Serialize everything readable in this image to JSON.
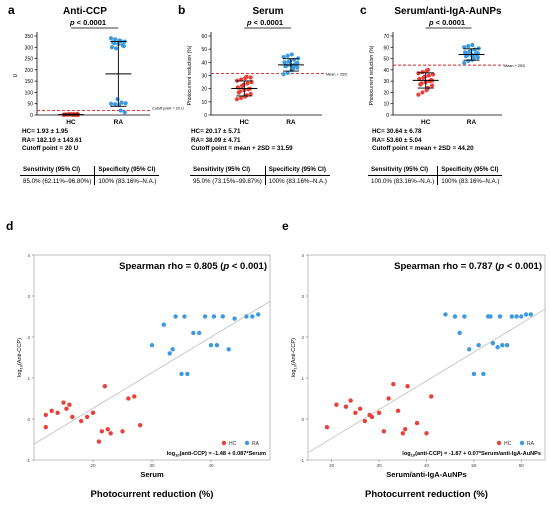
{
  "colors": {
    "hc": "#e8413a",
    "ra": "#3d9ae0",
    "cutoff": "#e01f1f",
    "fit": "#c8c8c8",
    "bar": "#000000"
  },
  "panels_top": [
    {
      "letter": "a",
      "title": "Anti-CCP",
      "p_label": "p < 0.0001",
      "ylabel": "U",
      "cutoff_label": "Cutoff point = 20 U",
      "stats": [
        "HC= 1.93 ± 1.95",
        "RA= 182.10 ± 143.61",
        "Cutoff point = 20 U"
      ],
      "ci": {
        "h1": "Sensitivity (95% CI)",
        "h2": "Specificity (95% CI)",
        "v1": "85.0% (62.11%–96.80%)",
        "v2": "100% (83.16%–N.A.)"
      }
    },
    {
      "letter": "b",
      "title": "Serum",
      "p_label": "p < 0.0001",
      "ylabel": "Photocurrent reduction (%)",
      "cutoff_label": "Mean + 2SD",
      "stats": [
        "HC= 20.17 ± 5.71",
        "RA= 38.09 ± 4.71",
        "Cutoff point = mean + 2SD = 31.59"
      ],
      "ci": {
        "h1": "Sensitivity (95% CI)",
        "h2": "Specificity (95% CI)",
        "v1": "95.0% (73.15%–99.87%)",
        "v2": "100% (83.16%–N.A.)"
      }
    },
    {
      "letter": "c",
      "title": "Serum/anti-IgA-AuNPs",
      "p_label": "p < 0.0001",
      "ylabel": "Photocurrent reduction (%)",
      "cutoff_label": "Mean + 2SD",
      "stats": [
        "HC= 30.64 ± 6.78",
        "RA= 53.60 ± 5.04",
        "Cutoff point = mean + 2SD = 44.20"
      ],
      "ci": {
        "h1": "Sensitivity (95% CI)",
        "h2": "Specificity (95% CI)",
        "v1": "100.0% (83.16%–N.A.)",
        "v2": "100% (83.16%–N.A.)"
      }
    }
  ],
  "panels_bottom": [
    {
      "letter": "d",
      "rho_text": "Spearman rho = 0.805 (p < 0.001)",
      "eq": "log10(anti-CCP) = -1.48 + 0.087*Serum",
      "xlabel": "Serum",
      "xlabel2": "Photocurrent reduction (%)",
      "ylabel": "log10(Anti-CCP)",
      "legend": [
        "HC",
        "RA"
      ]
    },
    {
      "letter": "e",
      "rho_text": "Spearman rho = 0.787 (p < 0.001)",
      "eq": "log10(anti-CCP) = -1.87 + 0.07*Serum/anti-IgA-AuNPs",
      "xlabel": "Serum/anti-IgA-AuNPs",
      "xlabel2": "Photocurrent reduction (%)",
      "ylabel": "log10(Anti-CCP)",
      "legend": [
        "HC",
        "RA"
      ]
    }
  ],
  "chart_data": [
    {
      "type": "scatter",
      "title": "Anti-CCP",
      "ylabel": "U",
      "categories": [
        "HC",
        "RA"
      ],
      "ylim": [
        0,
        350
      ],
      "yticks": [
        0,
        50,
        100,
        150,
        200,
        250,
        300,
        350
      ],
      "cutoff": 20,
      "summary": {
        "HC": {
          "mean": 1.93,
          "sd": 1.95
        },
        "RA": {
          "mean": 182.1,
          "sd": 143.61
        }
      },
      "series": [
        {
          "name": "HC",
          "values": [
            0.5,
            1,
            1.2,
            1.5,
            2,
            2.2,
            2.5,
            3,
            0.3,
            0.8,
            1.8,
            2.8,
            3.5,
            4,
            0.6,
            1.4,
            2.6,
            3.2,
            0.9,
            5
          ]
        },
        {
          "name": "RA",
          "values": [
            340,
            335,
            330,
            328,
            325,
            322,
            318,
            315,
            310,
            305,
            300,
            295,
            70,
            55,
            52,
            50,
            48,
            45,
            20,
            12
          ]
        }
      ]
    },
    {
      "type": "scatter",
      "title": "Serum",
      "ylabel": "Photocurrent reduction (%)",
      "categories": [
        "HC",
        "RA"
      ],
      "ylim": [
        0,
        60
      ],
      "yticks": [
        0,
        10,
        20,
        30,
        40,
        50,
        60
      ],
      "cutoff": 31.59,
      "summary": {
        "HC": {
          "mean": 20.17,
          "sd": 5.71
        },
        "RA": {
          "mean": 38.09,
          "sd": 4.71
        }
      },
      "series": [
        {
          "name": "HC",
          "values": [
            12,
            13,
            14,
            15,
            16,
            17,
            18,
            19,
            19.5,
            20,
            21,
            22,
            23,
            24,
            25,
            26,
            27,
            28,
            29,
            28.5
          ]
        },
        {
          "name": "RA",
          "values": [
            31,
            32,
            34,
            35,
            36,
            37,
            37.5,
            38,
            38.5,
            39,
            40,
            40.5,
            41,
            42,
            43,
            44,
            45,
            46,
            36.5,
            39.5
          ]
        }
      ]
    },
    {
      "type": "scatter",
      "title": "Serum/anti-IgA-AuNPs",
      "ylabel": "Photocurrent reduction (%)",
      "categories": [
        "HC",
        "RA"
      ],
      "ylim": [
        0,
        70
      ],
      "yticks": [
        0,
        10,
        20,
        30,
        40,
        50,
        60,
        70
      ],
      "cutoff": 44.2,
      "summary": {
        "HC": {
          "mean": 30.64,
          "sd": 6.78
        },
        "RA": {
          "mean": 53.6,
          "sd": 5.04
        }
      },
      "series": [
        {
          "name": "HC",
          "values": [
            18,
            20,
            22,
            24,
            26,
            27,
            28,
            29,
            30,
            31,
            32,
            33,
            34,
            35,
            36,
            37,
            38,
            39,
            40,
            30.5
          ]
        },
        {
          "name": "RA",
          "values": [
            46,
            48,
            49,
            50,
            51,
            52,
            53,
            53.5,
            54,
            55,
            55.5,
            56,
            57,
            58,
            59,
            60,
            61,
            62,
            52.5,
            54.5
          ]
        }
      ]
    },
    {
      "type": "scatter",
      "xlabel": "Serum",
      "ylabel": "log10(Anti-CCP)",
      "xlim": [
        10,
        50
      ],
      "ylim": [
        -1,
        4
      ],
      "xticks": [
        20,
        30,
        40
      ],
      "yticks": [
        -1,
        0,
        1,
        2,
        3,
        4
      ],
      "fit": {
        "intercept": -1.48,
        "slope": 0.087
      },
      "series": [
        {
          "name": "HC",
          "points": [
            [
              12,
              0.1
            ],
            [
              12,
              -0.2
            ],
            [
              13,
              0.2
            ],
            [
              14,
              0.15
            ],
            [
              15,
              0.4
            ],
            [
              15.5,
              0.25
            ],
            [
              16,
              0.35
            ],
            [
              16.5,
              0.05
            ],
            [
              18,
              -0.05
            ],
            [
              19,
              0.05
            ],
            [
              20,
              0.15
            ],
            [
              21,
              -0.55
            ],
            [
              21.5,
              -0.3
            ],
            [
              22,
              0.8
            ],
            [
              22.5,
              -0.25
            ],
            [
              23,
              -0.35
            ],
            [
              25,
              -0.3
            ],
            [
              26,
              0.5
            ],
            [
              27,
              0.55
            ],
            [
              28,
              -0.15
            ]
          ]
        },
        {
          "name": "RA",
          "points": [
            [
              30,
              1.8
            ],
            [
              32,
              2.3
            ],
            [
              33,
              1.6
            ],
            [
              33.5,
              1.7
            ],
            [
              34,
              2.5
            ],
            [
              35,
              1.1
            ],
            [
              35.5,
              2.5
            ],
            [
              36,
              1.1
            ],
            [
              37,
              2.1
            ],
            [
              38,
              2.1
            ],
            [
              39,
              2.5
            ],
            [
              40,
              1.8
            ],
            [
              40.5,
              2.5
            ],
            [
              41,
              1.8
            ],
            [
              42,
              2.5
            ],
            [
              43,
              1.7
            ],
            [
              44,
              2.45
            ],
            [
              46,
              2.5
            ],
            [
              47,
              2.5
            ],
            [
              48,
              2.55
            ]
          ]
        }
      ]
    },
    {
      "type": "scatter",
      "xlabel": "Serum/anti-IgA-AuNPs",
      "ylabel": "log10(Anti-CCP)",
      "xlim": [
        15,
        65
      ],
      "ylim": [
        -1,
        4
      ],
      "xticks": [
        20,
        30,
        40,
        50,
        60
      ],
      "yticks": [
        -1,
        0,
        1,
        2,
        3,
        4
      ],
      "fit": {
        "intercept": -1.87,
        "slope": 0.07
      },
      "series": [
        {
          "name": "HC",
          "points": [
            [
              19,
              -0.2
            ],
            [
              21,
              0.35
            ],
            [
              23,
              0.3
            ],
            [
              24,
              0.45
            ],
            [
              25,
              0.15
            ],
            [
              26,
              0.25
            ],
            [
              27,
              -0.05
            ],
            [
              28,
              0.1
            ],
            [
              28.5,
              0.05
            ],
            [
              30,
              0.15
            ],
            [
              31,
              -0.3
            ],
            [
              32,
              0.5
            ],
            [
              33,
              0.85
            ],
            [
              34,
              0.2
            ],
            [
              35,
              -0.35
            ],
            [
              35.5,
              -0.25
            ],
            [
              36,
              0.8
            ],
            [
              38,
              -0.1
            ],
            [
              40,
              -0.35
            ],
            [
              41,
              0.55
            ]
          ]
        },
        {
          "name": "RA",
          "points": [
            [
              44,
              2.55
            ],
            [
              46,
              2.5
            ],
            [
              47,
              2.1
            ],
            [
              48,
              2.5
            ],
            [
              49,
              1.7
            ],
            [
              50,
              1.1
            ],
            [
              51,
              1.8
            ],
            [
              52,
              1.1
            ],
            [
              53,
              2.5
            ],
            [
              53.5,
              2.5
            ],
            [
              54,
              1.85
            ],
            [
              55,
              1.75
            ],
            [
              55.5,
              2.5
            ],
            [
              56,
              1.8
            ],
            [
              57,
              1.8
            ],
            [
              58,
              2.5
            ],
            [
              59,
              2.5
            ],
            [
              60,
              2.5
            ],
            [
              61,
              2.55
            ],
            [
              62,
              2.55
            ]
          ]
        }
      ]
    }
  ]
}
